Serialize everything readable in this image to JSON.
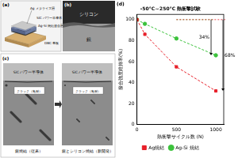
{
  "panels": {
    "a": {
      "label": "(a)",
      "metal": "Ag メタライズ層",
      "chip": "SiC パワー半導体",
      "joint": "Ag-Si 焼結接合層",
      "substrate": "DBC 基板"
    },
    "b": {
      "label": "(b)",
      "top": "シリコン",
      "bottom": "銀"
    },
    "c": {
      "label": "(c)",
      "left": {
        "chip": "SiC パワー半導体",
        "crack": "クラック（亀裂）",
        "caption": "銀焼結（従来）"
      },
      "right": {
        "chip": "SiC パワー半導体",
        "crack": "クラック（亀裂）",
        "caption": "銀とシリコン焼結（新開発）"
      }
    }
  },
  "chart_data": {
    "type": "line",
    "panel_label": "(d)",
    "title": "-50°C～250°C 熱衝撃試験",
    "x_label": "熱衝撃サイクル数 (N)",
    "y_label": "接合強度維持率(%)",
    "x": [
      0,
      100,
      500,
      1000
    ],
    "series": [
      {
        "name": "Ag焼結",
        "color": "#e8202a",
        "marker": "square",
        "line_style": "dashed",
        "values": [
          100,
          86,
          55,
          32
        ]
      },
      {
        "name": "Ag-Si 焼結",
        "color": "#3cc23c",
        "marker": "circle",
        "line_style": "dashed",
        "values": [
          100,
          96,
          82,
          66
        ]
      }
    ],
    "annotations": [
      {
        "text": "34%",
        "series": "Ag-Si 焼結"
      },
      {
        "text": "68%",
        "series": "Ag焼結"
      }
    ],
    "xlim": [
      0,
      1100
    ],
    "xticks": [
      0,
      500,
      1000
    ],
    "ylim": [
      0,
      105
    ],
    "yticks": [
      0,
      20,
      40,
      60,
      80,
      100
    ],
    "grid": false,
    "legend": "bottom"
  }
}
